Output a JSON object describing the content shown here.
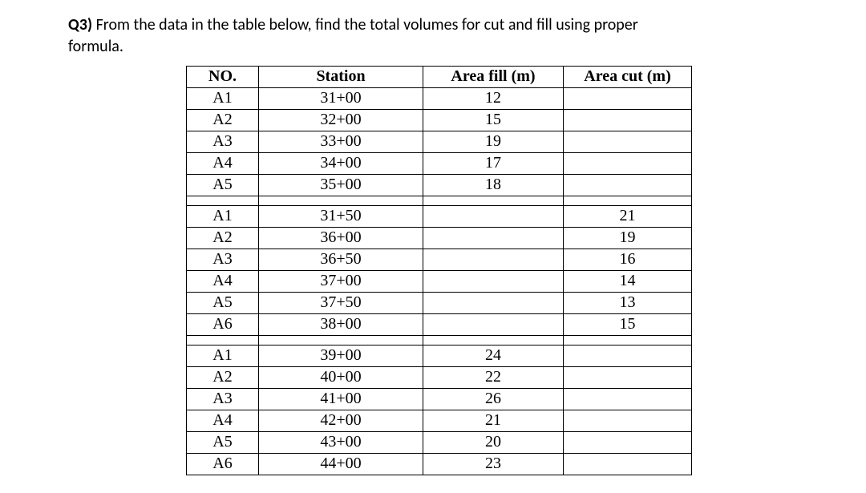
{
  "question": {
    "number": "Q3)",
    "text_a": " From the data in the table below, find the total volumes for cut and fill using proper",
    "text_b": "formula."
  },
  "table": {
    "headers": {
      "no": "NO.",
      "station": "Station",
      "fill": "Area fill (m)",
      "cut": "Area cut (m)"
    },
    "groups": [
      {
        "rows": [
          {
            "no": "A1",
            "station": "31+00",
            "fill": "12",
            "cut": ""
          },
          {
            "no": "A2",
            "station": "32+00",
            "fill": "15",
            "cut": ""
          },
          {
            "no": "A3",
            "station": "33+00",
            "fill": "19",
            "cut": ""
          },
          {
            "no": "A4",
            "station": "34+00",
            "fill": "17",
            "cut": ""
          },
          {
            "no": "A5",
            "station": "35+00",
            "fill": "18",
            "cut": ""
          }
        ]
      },
      {
        "rows": [
          {
            "no": "A1",
            "station": "31+50",
            "fill": "",
            "cut": "21"
          },
          {
            "no": "A2",
            "station": "36+00",
            "fill": "",
            "cut": "19"
          },
          {
            "no": "A3",
            "station": "36+50",
            "fill": "",
            "cut": "16"
          },
          {
            "no": "A4",
            "station": "37+00",
            "fill": "",
            "cut": "14"
          },
          {
            "no": "A5",
            "station": "37+50",
            "fill": "",
            "cut": "13"
          },
          {
            "no": "A6",
            "station": "38+00",
            "fill": "",
            "cut": "15"
          }
        ]
      },
      {
        "rows": [
          {
            "no": "A1",
            "station": "39+00",
            "fill": "24",
            "cut": ""
          },
          {
            "no": "A2",
            "station": "40+00",
            "fill": "22",
            "cut": ""
          },
          {
            "no": "A3",
            "station": "41+00",
            "fill": "26",
            "cut": ""
          },
          {
            "no": "A4",
            "station": "42+00",
            "fill": "21",
            "cut": ""
          },
          {
            "no": "A5",
            "station": "43+00",
            "fill": "20",
            "cut": ""
          },
          {
            "no": "A6",
            "station": "44+00",
            "fill": "23",
            "cut": ""
          }
        ]
      }
    ]
  }
}
